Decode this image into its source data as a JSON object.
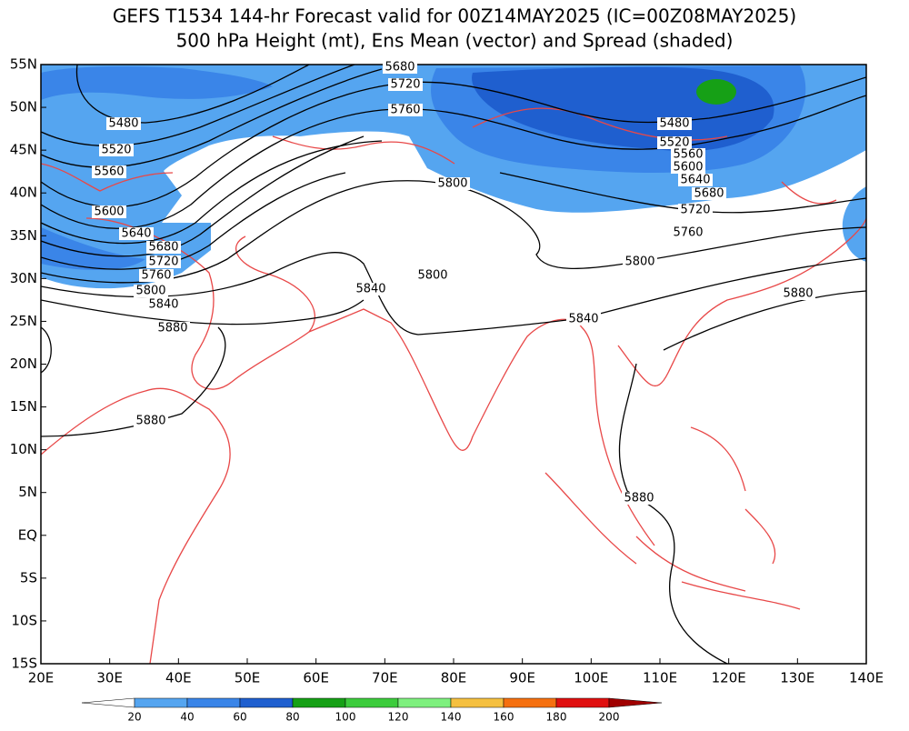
{
  "title": {
    "line1": "GEFS T1534 144-hr Forecast valid for 00Z14MAY2025 (IC=00Z08MAY2025)",
    "line2": "500 hPa Height (mt), Ens Mean (vector) and Spread (shaded)"
  },
  "map": {
    "xlim": [
      20,
      140
    ],
    "ylim": [
      -15,
      55
    ],
    "lat_labels": [
      {
        "value": 55,
        "label": "55N"
      },
      {
        "value": 50,
        "label": "50N"
      },
      {
        "value": 45,
        "label": "45N"
      },
      {
        "value": 40,
        "label": "40N"
      },
      {
        "value": 35,
        "label": "35N"
      },
      {
        "value": 30,
        "label": "30N"
      },
      {
        "value": 25,
        "label": "25N"
      },
      {
        "value": 20,
        "label": "20N"
      },
      {
        "value": 15,
        "label": "15N"
      },
      {
        "value": 10,
        "label": "10N"
      },
      {
        "value": 5,
        "label": "5N"
      },
      {
        "value": 0,
        "label": "EQ"
      },
      {
        "value": -5,
        "label": "5S"
      },
      {
        "value": -10,
        "label": "10S"
      },
      {
        "value": -15,
        "label": "15S"
      }
    ],
    "lon_labels": [
      {
        "value": 20,
        "label": "20E"
      },
      {
        "value": 30,
        "label": "30E"
      },
      {
        "value": 40,
        "label": "40E"
      },
      {
        "value": 50,
        "label": "50E"
      },
      {
        "value": 60,
        "label": "60E"
      },
      {
        "value": 70,
        "label": "70E"
      },
      {
        "value": 80,
        "label": "80E"
      },
      {
        "value": 90,
        "label": "90E"
      },
      {
        "value": 100,
        "label": "100E"
      },
      {
        "value": 110,
        "label": "110E"
      },
      {
        "value": 120,
        "label": "120E"
      },
      {
        "value": 130,
        "label": "130E"
      },
      {
        "value": 140,
        "label": "140E"
      }
    ],
    "contour_labels": [
      5480,
      5520,
      5560,
      5600,
      5640,
      5680,
      5720,
      5760,
      5800,
      5840,
      5880,
      5880,
      5880,
      5840,
      5840,
      5800,
      5800,
      5800,
      5760,
      5720,
      5680,
      5480,
      5520,
      5560,
      5600,
      5640,
      5680,
      5720,
      5760,
      5880
    ]
  },
  "colorbar": {
    "ticks": [
      20,
      40,
      60,
      80,
      100,
      120,
      140,
      160,
      180,
      200
    ],
    "colors": [
      "#ffffff",
      "#55a5f0",
      "#3a85e8",
      "#1f5fcf",
      "#16a016",
      "#3ccc3c",
      "#7ef07e",
      "#f5c040",
      "#f57010",
      "#e01010",
      "#a00000"
    ]
  }
}
